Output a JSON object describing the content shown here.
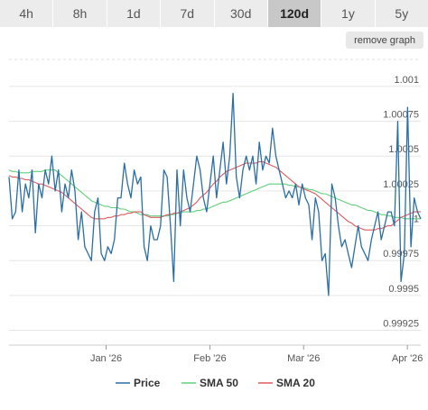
{
  "tabs": [
    {
      "label": "4h",
      "active": false
    },
    {
      "label": "8h",
      "active": false
    },
    {
      "label": "1d",
      "active": false
    },
    {
      "label": "7d",
      "active": false
    },
    {
      "label": "30d",
      "active": false
    },
    {
      "label": "120d",
      "active": true
    },
    {
      "label": "1y",
      "active": false
    },
    {
      "label": "5y",
      "active": false
    }
  ],
  "remove_graph_label": "remove graph",
  "chart_data": {
    "type": "line",
    "x_ticks": [
      {
        "label": "Jan '26",
        "day": 29
      },
      {
        "label": "Feb '26",
        "day": 60
      },
      {
        "label": "Mar '26",
        "day": 88
      },
      {
        "label": "Apr '26",
        "day": 119
      }
    ],
    "x_range": [
      0,
      123
    ],
    "y_ticks": [
      {
        "label": "1.001",
        "value": 1.001
      },
      {
        "label": "1.00075",
        "value": 1.00075
      },
      {
        "label": "1.0005",
        "value": 1.0005
      },
      {
        "label": "1.00025",
        "value": 1.00025
      },
      {
        "label": "1",
        "value": 1.0
      },
      {
        "label": "0.99975",
        "value": 0.99975
      },
      {
        "label": "0.9995",
        "value": 0.9995
      },
      {
        "label": "0.99925",
        "value": 0.99925
      }
    ],
    "y_range": [
      0.99915,
      1.0012
    ],
    "colors": {
      "price": "#2a6ea6",
      "sma50": "#5fcf7a",
      "sma20": "#e05a5a",
      "grid": "#e6e6e6"
    },
    "series": [
      {
        "name": "Price",
        "key": "price",
        "values": [
          1.00035,
          1.00005,
          1.0001,
          1.0004,
          1.0001,
          1.0003,
          1.0002,
          1.0004,
          0.99995,
          1.0003,
          1.0002,
          1.0004,
          1.0003,
          1.0005,
          1.00025,
          1.0004,
          1.0001,
          1.0003,
          1.0002,
          1.0004,
          1.00025,
          0.9999,
          1.0001,
          0.99985,
          0.9998,
          0.99975,
          1.0001,
          1.0002,
          0.9998,
          0.99975,
          0.99985,
          0.9998,
          0.9999,
          1.0002,
          1.0002,
          1.00045,
          1.0003,
          1.0002,
          1.0004,
          1.0003,
          1.00035,
          0.99985,
          0.99975,
          1.0,
          0.9999,
          0.9999,
          1.0,
          1.0004,
          1.00035,
          1.0,
          0.9996,
          1.0004,
          1.0,
          1.0004,
          1.0002,
          1.0001,
          1.0003,
          1.0005,
          1.0004,
          1.0002,
          1.0001,
          1.0003,
          1.0005,
          1.0002,
          1.0004,
          1.0006,
          1.0003,
          1.0005,
          1.00095,
          1.00035,
          1.0002,
          1.0004,
          1.0005,
          1.0004,
          1.0005,
          1.0003,
          1.0006,
          1.0004,
          1.0005,
          1.00045,
          1.0007,
          1.0005,
          1.0004,
          1.0003,
          1.0002,
          1.00025,
          1.0002,
          1.0003,
          1.00015,
          1.0003,
          1.0002,
          1.00015,
          0.9999,
          1.0002,
          1.0001,
          0.99975,
          0.9998,
          0.9995,
          1.0003,
          1.0002,
          1.0,
          0.99985,
          0.9999,
          0.9998,
          0.9997,
          0.99985,
          1.0,
          0.99985,
          0.9998,
          0.99975,
          0.9999,
          1.0,
          1.0001,
          0.9999,
          1.0,
          1.0001,
          1.0001,
          1.0,
          1.00075,
          0.9996,
          0.9998,
          1.00085,
          0.99985,
          1.0002,
          1.0001,
          1.00005
        ]
      },
      {
        "name": "SMA 50",
        "key": "sma50",
        "values": [
          1.0004,
          1.00039,
          1.00039,
          1.00038,
          1.00038,
          1.00038,
          1.00038,
          1.00039,
          1.00039,
          1.00039,
          1.00039,
          1.0004,
          1.0004,
          1.0004,
          1.0004,
          1.00038,
          1.00036,
          1.00034,
          1.00032,
          1.0003,
          1.00028,
          1.00026,
          1.00024,
          1.00022,
          1.0002,
          1.00018,
          1.00017,
          1.00016,
          1.00015,
          1.00014,
          1.00014,
          1.00013,
          1.00013,
          1.00013,
          1.00012,
          1.00012,
          1.00011,
          1.0001,
          1.0001,
          1.00009,
          1.00008,
          1.00008,
          1.00008,
          1.00007,
          1.00007,
          1.00007,
          1.00007,
          1.00007,
          1.00007,
          1.00008,
          1.00008,
          1.00009,
          1.00009,
          1.0001,
          1.0001,
          1.0001,
          1.0001,
          1.00011,
          1.00011,
          1.00012,
          1.00012,
          1.00013,
          1.00014,
          1.00015,
          1.00016,
          1.00017,
          1.00017,
          1.00018,
          1.00019,
          1.0002,
          1.00021,
          1.00022,
          1.00023,
          1.00024,
          1.00025,
          1.00026,
          1.00027,
          1.00028,
          1.00029,
          1.0003,
          1.0003,
          1.0003,
          1.0003,
          1.0003,
          1.0003,
          1.00029,
          1.00029,
          1.00028,
          1.00028,
          1.00027,
          1.00027,
          1.00026,
          1.00026,
          1.00025,
          1.00024,
          1.00023,
          1.00023,
          1.00022,
          1.00021,
          1.0002,
          1.00019,
          1.00018,
          1.00017,
          1.00016,
          1.00015,
          1.00015,
          1.00014,
          1.00013,
          1.00012,
          1.00011,
          1.00011,
          1.0001,
          1.00009,
          1.00008,
          1.00008,
          1.00007,
          1.00007,
          1.00006,
          1.00006,
          1.00006,
          1.00005,
          1.00005,
          1.00005,
          1.00005,
          1.00005,
          1.00005
        ]
      },
      {
        "name": "SMA 20",
        "key": "sma20",
        "values": [
          1.00036,
          1.00035,
          1.00035,
          1.00034,
          1.00034,
          1.00033,
          1.00033,
          1.00032,
          1.00031,
          1.0003,
          1.0003,
          1.00029,
          1.00028,
          1.00027,
          1.00026,
          1.00025,
          1.00024,
          1.00022,
          1.0002,
          1.00018,
          1.00016,
          1.00014,
          1.00012,
          1.0001,
          1.00008,
          1.00006,
          1.00005,
          1.00005,
          1.00005,
          1.00005,
          1.00006,
          1.00006,
          1.00007,
          1.00007,
          1.00008,
          1.00008,
          1.00009,
          1.00009,
          1.0001,
          1.0001,
          1.0001,
          1.00008,
          1.00007,
          1.00006,
          1.00006,
          1.00006,
          1.00006,
          1.00007,
          1.00008,
          1.00008,
          1.00009,
          1.00009,
          1.0001,
          1.00011,
          1.00012,
          1.00013,
          1.00015,
          1.00017,
          1.0002,
          1.00022,
          1.00024,
          1.00027,
          1.0003,
          1.00032,
          1.00035,
          1.00037,
          1.00039,
          1.0004,
          1.00041,
          1.00042,
          1.00043,
          1.00044,
          1.00045,
          1.00045,
          1.00045,
          1.00045,
          1.00046,
          1.00046,
          1.00045,
          1.00044,
          1.00043,
          1.00042,
          1.0004,
          1.00038,
          1.00036,
          1.00034,
          1.00032,
          1.0003,
          1.00028,
          1.00027,
          1.00026,
          1.00025,
          1.00024,
          1.00023,
          1.00021,
          1.00019,
          1.00017,
          1.00015,
          1.00013,
          1.00011,
          1.00009,
          1.00007,
          1.00005,
          1.00003,
          1.00002,
          1.0,
          0.99999,
          0.99998,
          0.99997,
          0.99997,
          0.99997,
          0.99997,
          0.99998,
          0.99998,
          0.99999,
          1.0,
          1.0,
          1.00002,
          1.00004,
          1.00006,
          1.00007,
          1.00008,
          1.00009,
          1.0001,
          1.0001,
          1.0001
        ]
      }
    ],
    "grid": true,
    "legend_position": "bottom-center"
  }
}
